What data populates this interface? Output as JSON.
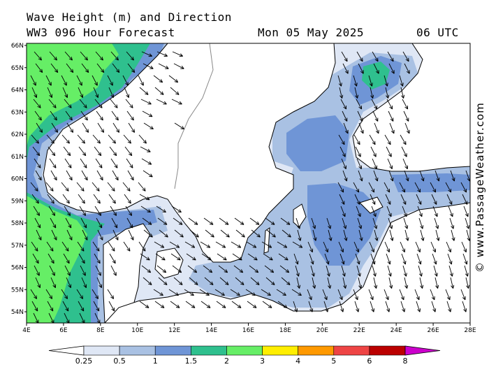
{
  "header": {
    "title": "Wave Height (m) and Direction",
    "model": "WW3 096 Hour Forecast",
    "date": "Mon 05 May 2025",
    "time": "06 UTC"
  },
  "credit": "© www.PassageWeather.com",
  "map_data": {
    "lon_ticks": [
      "4E",
      "6E",
      "8E",
      "10E",
      "12E",
      "14E",
      "16E",
      "18E",
      "20E",
      "22E",
      "24E",
      "26E",
      "28E"
    ],
    "lat_ticks": [
      "66N",
      "65N",
      "64N",
      "63N",
      "62N",
      "61N",
      "60N",
      "59N",
      "58N",
      "57N",
      "56N",
      "55N",
      "54N"
    ],
    "lon_range": [
      4,
      28
    ],
    "lat_range": [
      53.6,
      66
    ]
  },
  "colorbar": {
    "labels": [
      "0.25",
      "0.5",
      "1",
      "1.5",
      "2",
      "3",
      "4",
      "5",
      "6",
      "8"
    ],
    "colors": [
      "#dfe7f5",
      "#a9c1e3",
      "#6f95d6",
      "#2fc08e",
      "#66ee66",
      "#ffee00",
      "#ff9900",
      "#ee4444",
      "#bb0000",
      "#cc00cc"
    ]
  },
  "colors": {
    "land": "#ffffff",
    "sea_low": "#dfe7f5",
    "arrow": "#000000"
  }
}
